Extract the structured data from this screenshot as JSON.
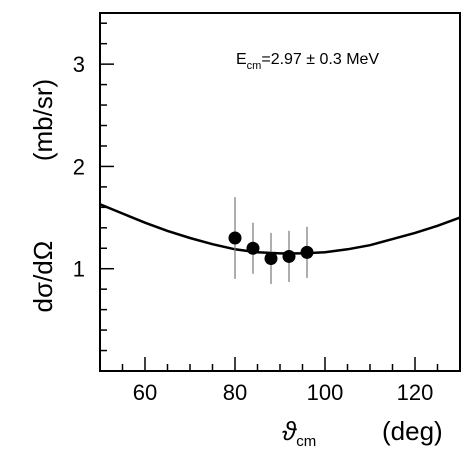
{
  "chart_data": {
    "type": "scatter",
    "xlabel_symbol": "ϑ",
    "xlabel_sub": "cm",
    "xlabel_unit": "(deg)",
    "ylabel": "dσ/dΩ",
    "ylabel_unit": "(mb/sr)",
    "xlim": [
      50,
      130
    ],
    "ylim": [
      0,
      3.5
    ],
    "x_ticks": [
      "60",
      "80",
      "100",
      "120"
    ],
    "y_ticks": [
      "1",
      "2",
      "3"
    ],
    "annotation": {
      "prefix": "E",
      "sub": "cm",
      "text": "=2.97 ± 0.3 MeV"
    },
    "series": [
      {
        "type": "scatter",
        "x": [
          80,
          84,
          88,
          92,
          96
        ],
        "y": [
          1.3,
          1.2,
          1.1,
          1.12,
          1.16
        ],
        "yerr": [
          0.4,
          0.25,
          0.25,
          0.25,
          0.25
        ]
      },
      {
        "type": "line",
        "x": [
          50,
          55,
          60,
          65,
          70,
          75,
          80,
          85,
          90,
          95,
          100,
          105,
          110,
          115,
          120,
          125,
          130
        ],
        "y": [
          1.63,
          1.54,
          1.45,
          1.37,
          1.3,
          1.24,
          1.19,
          1.16,
          1.15,
          1.15,
          1.16,
          1.19,
          1.23,
          1.29,
          1.35,
          1.42,
          1.5
        ]
      }
    ]
  }
}
